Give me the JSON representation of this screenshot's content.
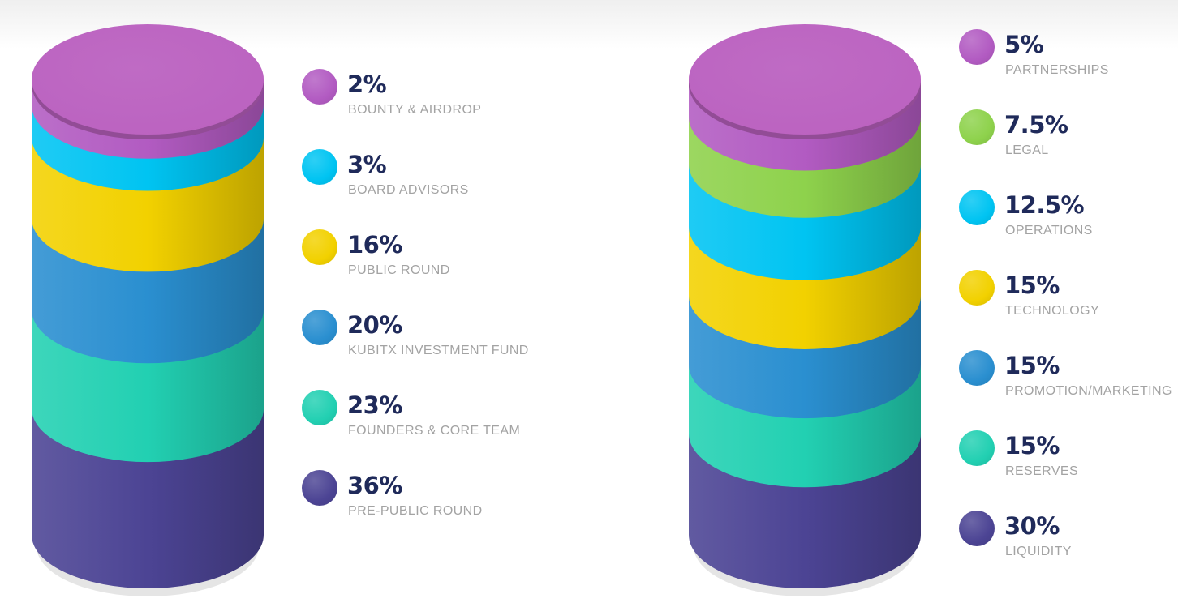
{
  "chart_data": [
    {
      "type": "pie",
      "labels": [
        "BOUNTY & AIRDROP",
        "BOARD ADVISORS",
        "PUBLIC ROUND",
        "KUBITX INVESTMENT FUND",
        "FOUNDERS & CORE TEAM",
        "PRE-PUBLIC ROUND"
      ],
      "display_values": [
        "2%",
        "3%",
        "16%",
        "20%",
        "23%",
        "36%"
      ],
      "values": [
        2,
        3,
        16,
        20,
        23,
        36
      ],
      "colors": [
        "#b25bc2",
        "#00c4f2",
        "#f2d100",
        "#2a8fd0",
        "#22d0b2",
        "#4c4494"
      ],
      "lid_color": "#bb62c0"
    },
    {
      "type": "pie",
      "labels": [
        "PARTNERSHIPS",
        "LEGAL",
        "OPERATIONS",
        "TECHNOLOGY",
        "PROMOTION/MARKETING",
        "RESERVES",
        "LIQUIDITY"
      ],
      "display_values": [
        "5%",
        "7.5%",
        "12.5%",
        "15%",
        "15%",
        "15%",
        "30%"
      ],
      "values": [
        5,
        7.5,
        12.5,
        15,
        15,
        15,
        30
      ],
      "colors": [
        "#b25bc2",
        "#8ed24c",
        "#00c4f2",
        "#f2d100",
        "#2a8fd0",
        "#22d0b2",
        "#4c4494"
      ],
      "lid_color": "#bb62c0"
    }
  ]
}
